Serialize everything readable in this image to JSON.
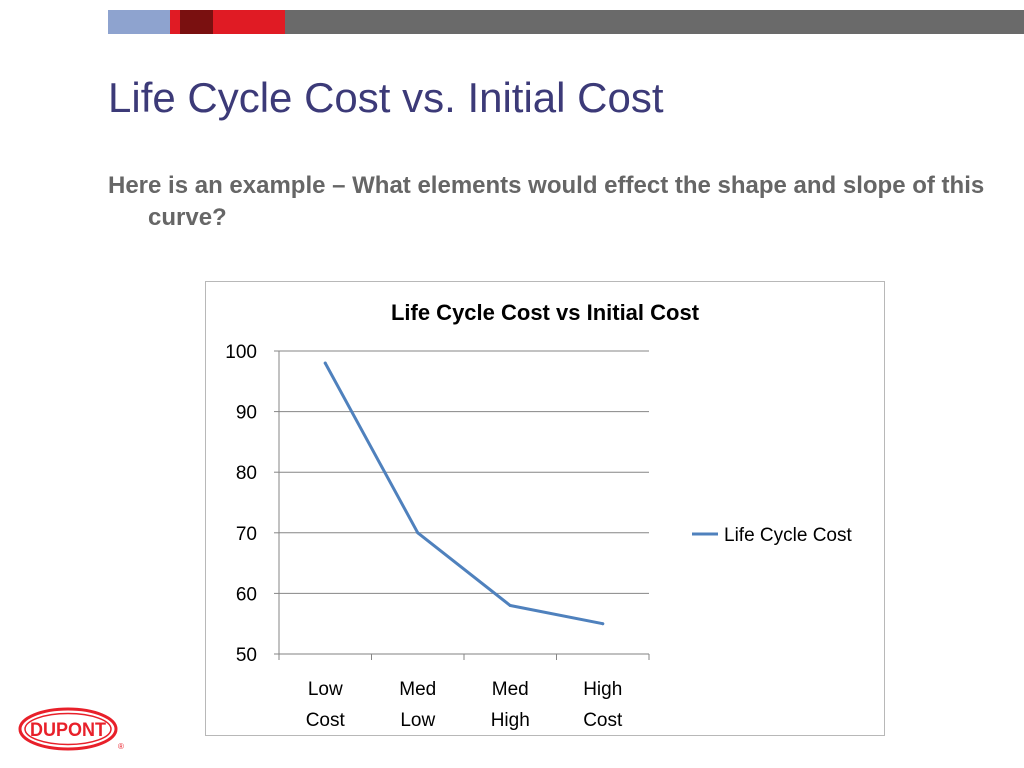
{
  "slide": {
    "title": "Life Cycle Cost vs. Initial Cost",
    "body": "Here is an example – What elements would effect the shape and slope of this curve?"
  },
  "colors": {
    "title": "#3c3a78",
    "body_text": "#666666",
    "bar_blue": "#8ea3cf",
    "bar_red": "#e01b24",
    "bar_dark_red": "#7a1010",
    "bar_gray": "#6a6a6a",
    "series_line": "#4f81bd",
    "logo_red": "#e8202a"
  },
  "logo": {
    "text": "DUPONT",
    "mark": "®"
  },
  "chart_data": {
    "type": "line",
    "title": "Life Cycle Cost vs Initial Cost",
    "categories": [
      [
        "Low",
        "Cost"
      ],
      [
        "Med",
        "Low"
      ],
      [
        "Med",
        "High"
      ],
      [
        "High",
        "Cost"
      ]
    ],
    "series": [
      {
        "name": "Life Cycle Cost",
        "values": [
          98,
          70,
          58,
          55
        ]
      }
    ],
    "ylim": [
      50,
      100
    ],
    "yticks": [
      50,
      60,
      70,
      80,
      90,
      100
    ],
    "grid": true,
    "legend": "right"
  }
}
